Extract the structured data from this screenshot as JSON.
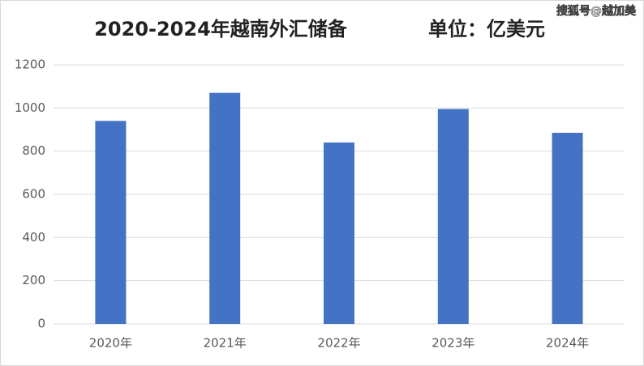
{
  "chart_data": {
    "type": "bar",
    "title": "2020-2024年越南外汇储备",
    "unit": "单位：亿美元",
    "watermark": "搜狐号@越加美",
    "categories": [
      "2020年",
      "2021年",
      "2022年",
      "2023年",
      "2024年"
    ],
    "values": [
      940,
      1070,
      840,
      995,
      885
    ],
    "color": "#4472c4",
    "ylim": [
      0,
      1200
    ],
    "yticks": [
      0,
      200,
      400,
      600,
      800,
      1000,
      1200
    ],
    "grid": true
  }
}
